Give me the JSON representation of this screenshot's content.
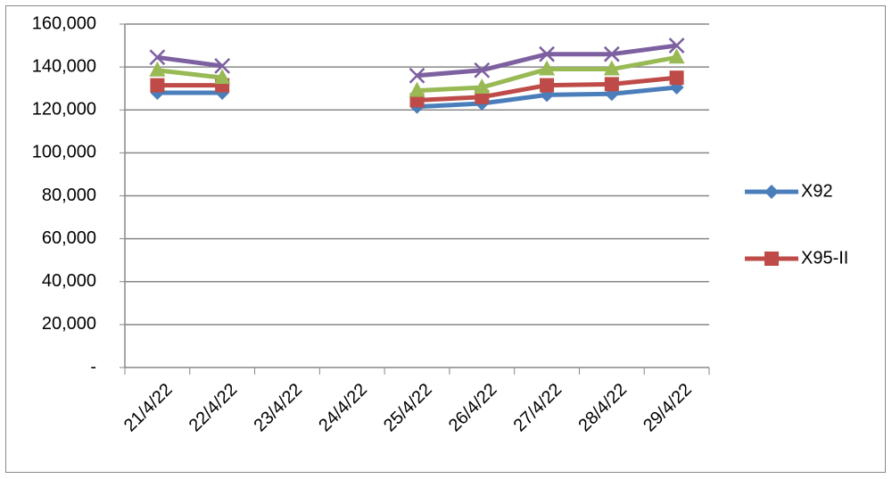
{
  "chart_data": {
    "type": "line",
    "categories": [
      "21/4/22",
      "22/4/22",
      "23/4/22",
      "24/4/22",
      "25/4/22",
      "26/4/22",
      "27/4/22",
      "28/4/22",
      "29/4/22"
    ],
    "series": [
      {
        "name": "X92",
        "color": "#4a7ebb",
        "marker": "diamond",
        "values": [
          128000,
          128000,
          null,
          null,
          121500,
          123000,
          127000,
          127500,
          130500
        ]
      },
      {
        "name": "X95-II",
        "color": "#be4b48",
        "marker": "square",
        "values": [
          131500,
          131500,
          null,
          null,
          124500,
          126000,
          131500,
          132000,
          135000
        ]
      },
      {
        "color": "#98b954",
        "marker": "triangle",
        "values": [
          138500,
          135000,
          null,
          null,
          129000,
          130500,
          139000,
          139000,
          144500
        ]
      },
      {
        "color": "#7d60a0",
        "marker": "x",
        "values": [
          144500,
          140500,
          null,
          null,
          136000,
          138500,
          146000,
          146000,
          150000
        ]
      }
    ],
    "ylim": [
      0,
      160000
    ],
    "yticks": [
      {
        "value": 0,
        "label": "-"
      },
      {
        "value": 20000,
        "label": "20,000"
      },
      {
        "value": 40000,
        "label": "40,000"
      },
      {
        "value": 60000,
        "label": "60,000"
      },
      {
        "value": 80000,
        "label": "80,000"
      },
      {
        "value": 100000,
        "label": "100,000"
      },
      {
        "value": 120000,
        "label": "120,000"
      },
      {
        "value": 140000,
        "label": "140,000"
      },
      {
        "value": 160000,
        "label": "160,000"
      }
    ],
    "grid": true,
    "legend": "right"
  }
}
